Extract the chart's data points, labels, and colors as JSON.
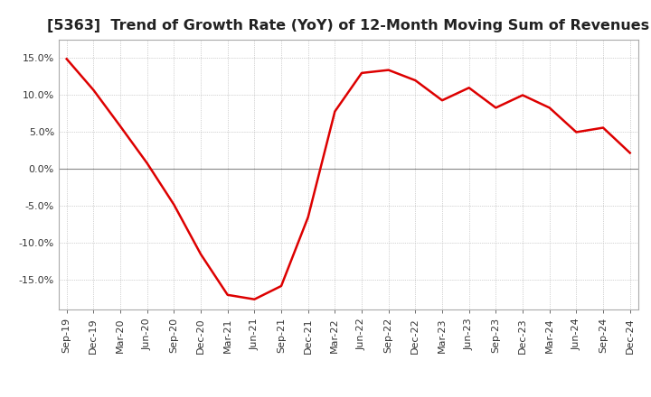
{
  "title": "[5363]  Trend of Growth Rate (YoY) of 12-Month Moving Sum of Revenues",
  "title_fontsize": 11.5,
  "line_color": "#dd0000",
  "background_color": "#ffffff",
  "ylim": [
    -0.19,
    0.175
  ],
  "yticks": [
    -0.15,
    -0.1,
    -0.05,
    0.0,
    0.05,
    0.1,
    0.15
  ],
  "x_labels": [
    "Sep-19",
    "Dec-19",
    "Mar-20",
    "Jun-20",
    "Sep-20",
    "Dec-20",
    "Mar-21",
    "Jun-21",
    "Sep-21",
    "Dec-21",
    "Mar-22",
    "Jun-22",
    "Sep-22",
    "Dec-22",
    "Mar-23",
    "Jun-23",
    "Sep-23",
    "Dec-23",
    "Mar-24",
    "Jun-24",
    "Sep-24",
    "Dec-24"
  ],
  "values": [
    0.149,
    0.107,
    0.058,
    0.008,
    -0.048,
    -0.115,
    -0.17,
    -0.176,
    -0.158,
    -0.065,
    0.078,
    0.13,
    0.134,
    0.12,
    0.093,
    0.11,
    0.083,
    0.1,
    0.083,
    0.05,
    0.056,
    0.022
  ]
}
